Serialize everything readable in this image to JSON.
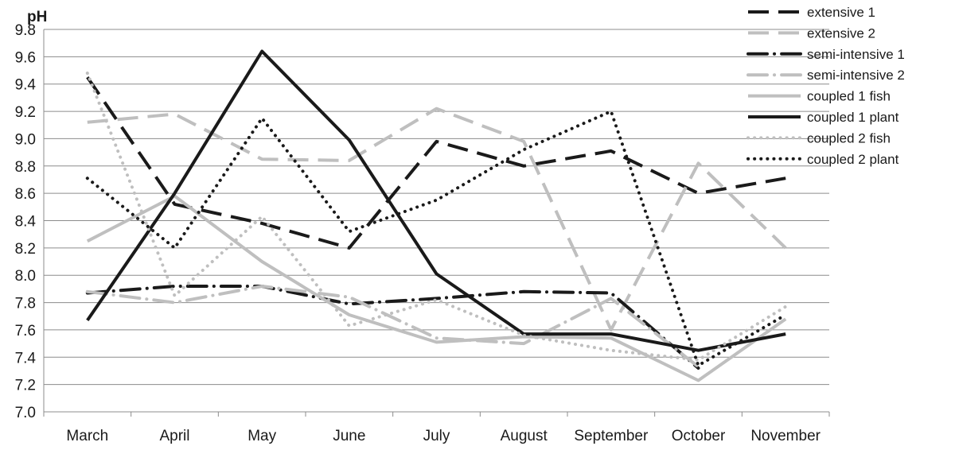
{
  "chart_data": {
    "type": "line",
    "ylabel": "pH",
    "xlabel": "",
    "ylim": [
      7.0,
      9.8
    ],
    "ytick_step": 0.2,
    "grid": true,
    "legend_placement": "top-right",
    "categories": [
      "March",
      "April",
      "May",
      "June",
      "July",
      "August",
      "September",
      "October",
      "November"
    ],
    "series": [
      {
        "name": "extensive 1",
        "color": "#1a1a1a",
        "style": "dash",
        "values": [
          9.45,
          8.52,
          8.38,
          8.2,
          8.98,
          8.8,
          8.91,
          8.6,
          8.71
        ]
      },
      {
        "name": "extensive 2",
        "color": "#bfbfbf",
        "style": "dash",
        "values": [
          9.12,
          9.18,
          8.85,
          8.84,
          9.22,
          8.98,
          7.6,
          8.82,
          8.2
        ]
      },
      {
        "name": "semi-intensive 1",
        "color": "#1a1a1a",
        "style": "dashdot",
        "values": [
          7.87,
          7.92,
          7.92,
          7.79,
          7.83,
          7.88,
          7.87,
          7.32,
          null
        ]
      },
      {
        "name": "semi-intensive 2",
        "color": "#bfbfbf",
        "style": "dashdot",
        "values": [
          7.88,
          7.8,
          7.92,
          7.84,
          7.54,
          7.5,
          7.83,
          7.33,
          null
        ]
      },
      {
        "name": "coupled 1 fish",
        "color": "#bfbfbf",
        "style": "solid",
        "values": [
          8.25,
          8.58,
          8.1,
          7.71,
          7.51,
          7.55,
          7.54,
          7.23,
          7.68
        ]
      },
      {
        "name": "coupled 1 plant",
        "color": "#1a1a1a",
        "style": "solid",
        "values": [
          7.67,
          8.6,
          9.64,
          8.99,
          8.01,
          7.57,
          7.57,
          7.45,
          7.57
        ]
      },
      {
        "name": "coupled 2 fish",
        "color": "#bfbfbf",
        "style": "dot",
        "values": [
          9.48,
          7.85,
          8.43,
          7.63,
          7.82,
          7.56,
          7.45,
          7.38,
          7.77
        ]
      },
      {
        "name": "coupled 2 plant",
        "color": "#1a1a1a",
        "style": "dot",
        "values": [
          8.71,
          8.2,
          9.15,
          8.32,
          8.55,
          8.92,
          9.2,
          7.34,
          7.71
        ]
      }
    ]
  }
}
